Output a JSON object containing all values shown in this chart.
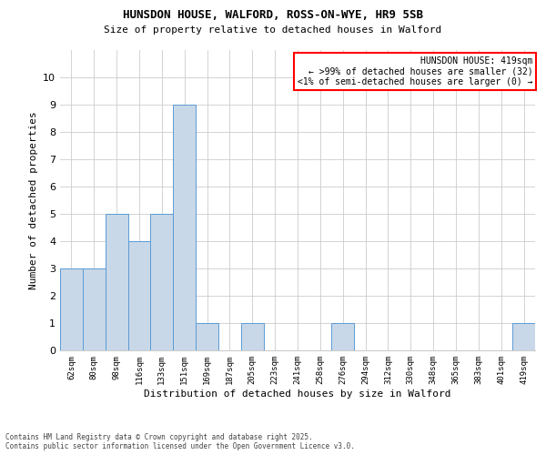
{
  "title1": "HUNSDON HOUSE, WALFORD, ROSS-ON-WYE, HR9 5SB",
  "title2": "Size of property relative to detached houses in Walford",
  "xlabel": "Distribution of detached houses by size in Walford",
  "ylabel": "Number of detached properties",
  "categories": [
    "62sqm",
    "80sqm",
    "98sqm",
    "116sqm",
    "133sqm",
    "151sqm",
    "169sqm",
    "187sqm",
    "205sqm",
    "223sqm",
    "241sqm",
    "258sqm",
    "276sqm",
    "294sqm",
    "312sqm",
    "330sqm",
    "348sqm",
    "365sqm",
    "383sqm",
    "401sqm",
    "419sqm"
  ],
  "values": [
    3,
    3,
    5,
    4,
    5,
    9,
    1,
    0,
    1,
    0,
    0,
    0,
    1,
    0,
    0,
    0,
    0,
    0,
    0,
    0,
    1
  ],
  "bar_color": "#c8d8e8",
  "bar_edge_color": "#5b9bd5",
  "ylim": [
    0,
    11
  ],
  "yticks": [
    0,
    1,
    2,
    3,
    4,
    5,
    6,
    7,
    8,
    9,
    10
  ],
  "legend_text_line1": "HUNSDON HOUSE: 419sqm",
  "legend_text_line2": "← >99% of detached houses are smaller (32)",
  "legend_text_line3": "<1% of semi-detached houses are larger (0) →",
  "legend_box_color": "red",
  "footer_line1": "Contains HM Land Registry data © Crown copyright and database right 2025.",
  "footer_line2": "Contains public sector information licensed under the Open Government Licence v3.0.",
  "background_color": "#ffffff",
  "grid_color": "#cccccc",
  "title1_fontsize": 9,
  "title2_fontsize": 8,
  "xlabel_fontsize": 8,
  "ylabel_fontsize": 8,
  "xtick_fontsize": 6.5,
  "ytick_fontsize": 8,
  "legend_fontsize": 7,
  "footer_fontsize": 5.5
}
